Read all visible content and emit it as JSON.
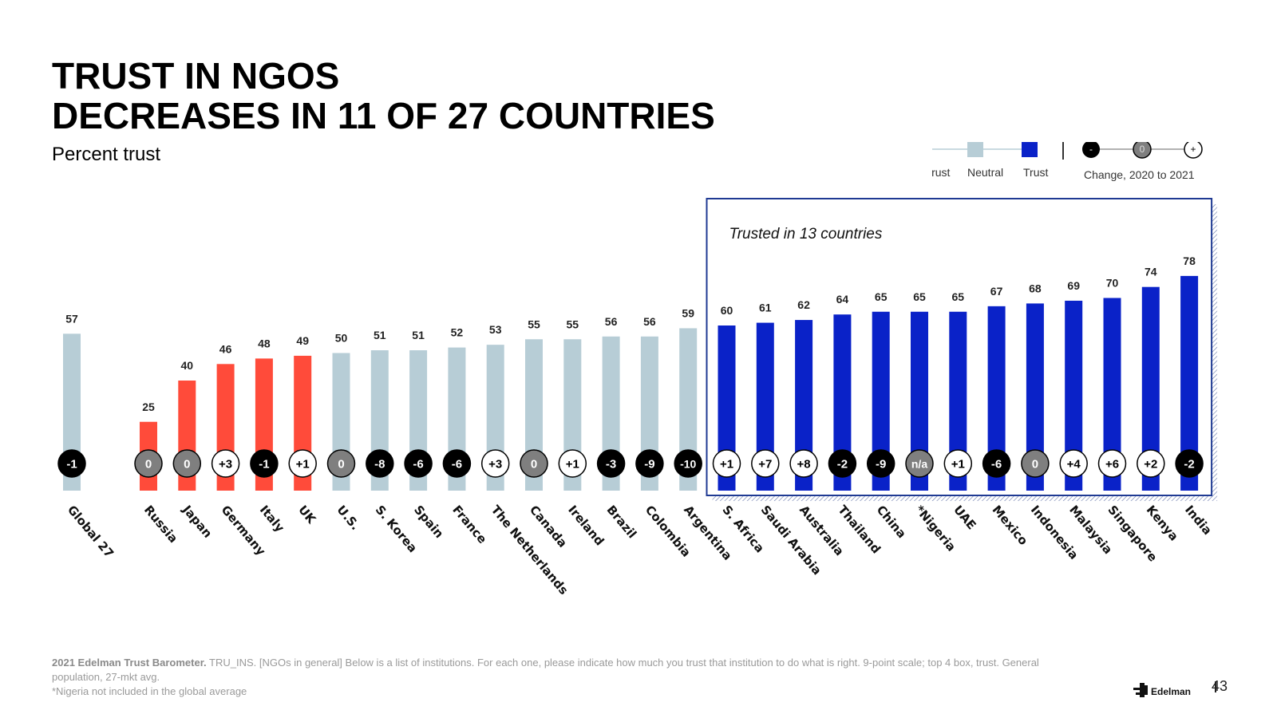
{
  "title": {
    "line1": "TRUST IN NGOS",
    "line2": "DECREASES IN 11 OF 27 COUNTRIES"
  },
  "subtitle": "Percent trust",
  "legend": {
    "distrust": "Distrust",
    "neutral": "Neutral",
    "trust": "Trust",
    "change_label": "Change, 2020 to 2021",
    "minus_symbol": "-",
    "zero_symbol": "0",
    "plus_symbol": "+"
  },
  "colors": {
    "distrust": "#ff4b3a",
    "neutral": "#b7cdd6",
    "trust": "#0a22c8",
    "badge_neg": "#000000",
    "badge_zero": "#7f7f7f",
    "badge_pos": "#ffffff",
    "box": "#1f3a93"
  },
  "chart_data": {
    "type": "bar",
    "title": "Trust in NGOs",
    "ylabel": "Percent trust",
    "ylim": [
      0,
      85
    ],
    "annotation": "Trusted in 13 countries",
    "categories": [
      "Global 27",
      "Russia",
      "Japan",
      "Germany",
      "Italy",
      "UK",
      "U.S.",
      "S. Korea",
      "Spain",
      "France",
      "The Netherlands",
      "Canada",
      "Ireland",
      "Brazil",
      "Colombia",
      "Argentina",
      "S. Africa",
      "Saudi Arabia",
      "Australia",
      "Thailand",
      "China",
      "*Nigeria",
      "UAE",
      "Mexico",
      "Indonesia",
      "Malaysia",
      "Singapore",
      "Kenya",
      "India"
    ],
    "values": [
      57,
      25,
      40,
      46,
      48,
      49,
      50,
      51,
      51,
      52,
      53,
      55,
      55,
      56,
      56,
      59,
      60,
      61,
      62,
      64,
      65,
      65,
      65,
      67,
      68,
      69,
      70,
      74,
      78
    ],
    "category_type": [
      "neutral",
      "distrust",
      "distrust",
      "distrust",
      "distrust",
      "distrust",
      "neutral",
      "neutral",
      "neutral",
      "neutral",
      "neutral",
      "neutral",
      "neutral",
      "neutral",
      "neutral",
      "neutral",
      "trust",
      "trust",
      "trust",
      "trust",
      "trust",
      "trust",
      "trust",
      "trust",
      "trust",
      "trust",
      "trust",
      "trust",
      "trust"
    ],
    "change": [
      "-1",
      "0",
      "0",
      "+3",
      "-1",
      "+1",
      "0",
      "-8",
      "-6",
      "-6",
      "+3",
      "0",
      "+1",
      "-3",
      "-9",
      "-10",
      "+1",
      "+7",
      "+8",
      "-2",
      "-9",
      "n/a",
      "+1",
      "-6",
      "0",
      "+4",
      "+6",
      "+2",
      "-2"
    ]
  },
  "footer": {
    "source_bold": "2021 Edelman Trust Barometer.",
    "source_text": " TRU_INS. [NGOs in general] Below is a list of institutions. For each one, please indicate how much you trust that institution to do what is right. 9-point scale; top 4 box, trust. General population, 27-mkt avg.",
    "note": "*Nigeria not included in the global average"
  },
  "brand": "Edelman",
  "page_number": "43"
}
